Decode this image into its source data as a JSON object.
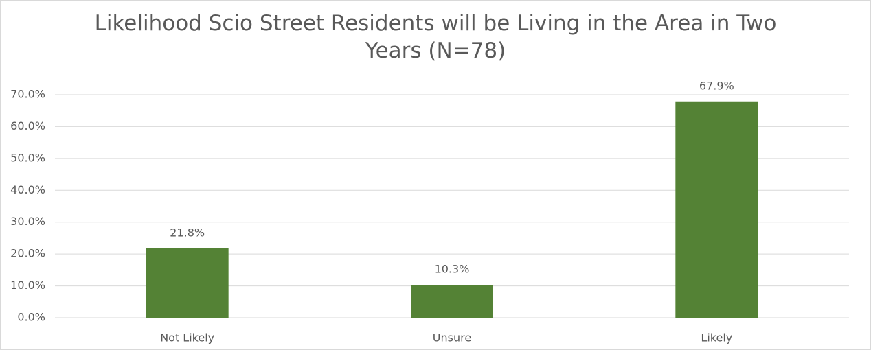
{
  "chart_data": {
    "type": "bar",
    "title": "Likelihood Scio Street Residents will be Living in the Area in Two Years (N=78)",
    "categories": [
      "Not Likely",
      "Unsure",
      "Likely"
    ],
    "values": [
      21.8,
      10.3,
      67.9
    ],
    "value_labels": [
      "21.8%",
      "10.3%",
      "67.9%"
    ],
    "color": "#548235",
    "ylim": [
      0,
      70
    ],
    "yticks": [
      {
        "value": 0,
        "label": "0.0%"
      },
      {
        "value": 10,
        "label": "10.0%"
      },
      {
        "value": 20,
        "label": "20.0%"
      },
      {
        "value": 30,
        "label": "30.0%"
      },
      {
        "value": 40,
        "label": "40.0%"
      },
      {
        "value": 50,
        "label": "50.0%"
      },
      {
        "value": 60,
        "label": "60.0%"
      },
      {
        "value": 70,
        "label": "70.0%"
      }
    ],
    "grid": true
  }
}
